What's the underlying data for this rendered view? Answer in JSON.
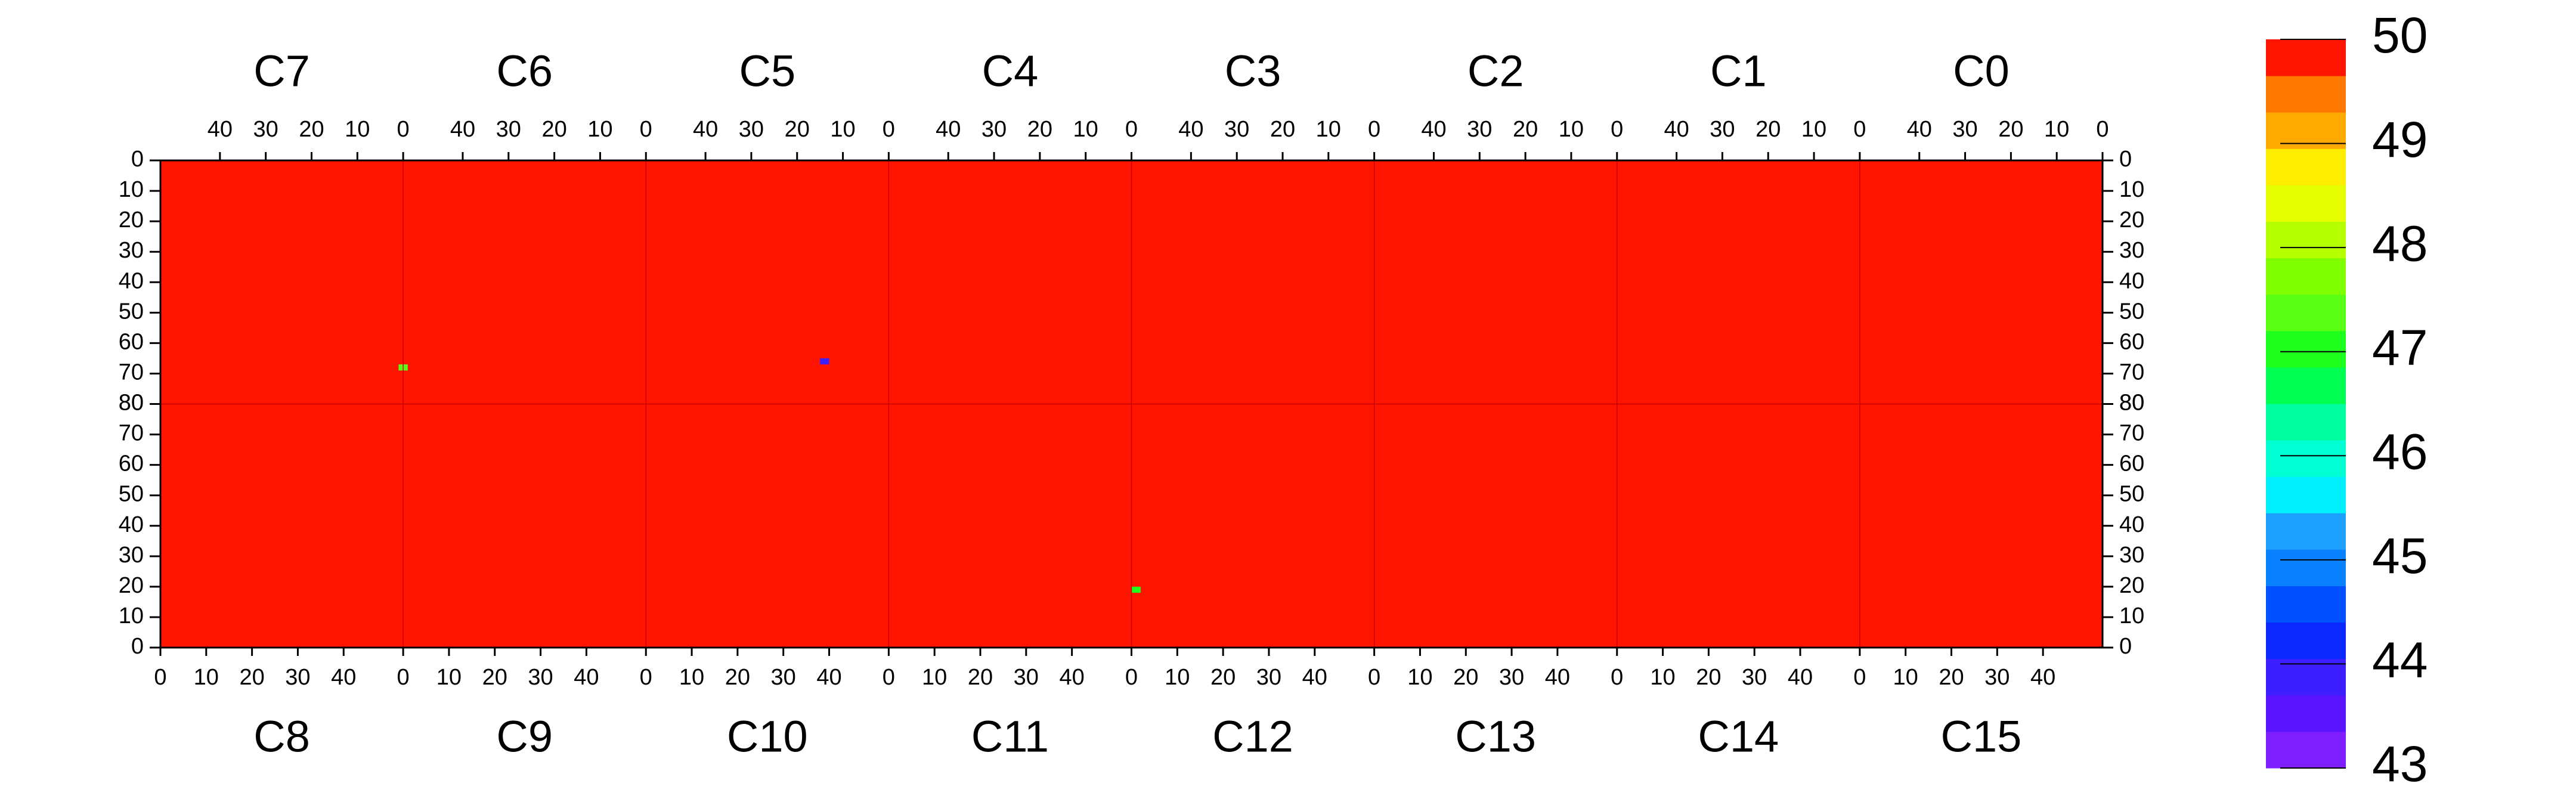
{
  "chart_data": {
    "type": "heatmap",
    "top_chips": [
      "C7",
      "C6",
      "C5",
      "C4",
      "C3",
      "C2",
      "C1",
      "C0"
    ],
    "bottom_chips": [
      "C8",
      "C9",
      "C10",
      "C11",
      "C12",
      "C13",
      "C14",
      "C15"
    ],
    "xlim": [
      0,
      53
    ],
    "xticks": [
      0,
      10,
      20,
      30,
      40
    ],
    "ylim": [
      0,
      80
    ],
    "yticks": [
      0,
      10,
      20,
      30,
      40,
      50,
      60,
      70,
      80
    ],
    "zlim": [
      43,
      50
    ],
    "zticks": [
      43,
      44,
      45,
      46,
      47,
      48,
      49,
      50
    ],
    "colors": [
      "#7f1fff",
      "#5a14ff",
      "#3c1eff",
      "#0a28ff",
      "#0050ff",
      "#0a82ff",
      "#1ea0ff",
      "#00f0ff",
      "#00ffd2",
      "#00ffa0",
      "#00ff50",
      "#1eff1e",
      "#5aff14",
      "#80ff00",
      "#b4ff00",
      "#e6ff00",
      "#ffee00",
      "#ffaa00",
      "#ff7800",
      "#ff1400"
    ],
    "fill_value": 50,
    "cells": [
      {
        "chip": "C5",
        "x": 14,
        "y": 65,
        "value": 44
      },
      {
        "chip": "C12",
        "x": 0,
        "y": 19,
        "value": 47
      },
      {
        "chip": "C7",
        "x": 0,
        "y": 67,
        "value": 47.5
      }
    ]
  }
}
